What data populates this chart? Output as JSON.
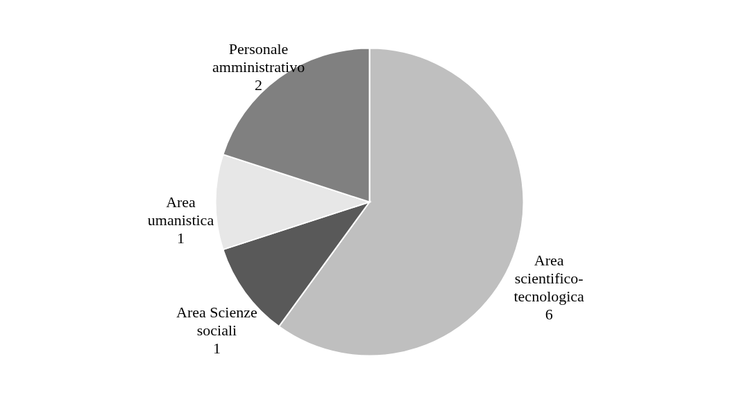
{
  "chart_data": {
    "type": "pie",
    "categories": [
      "Area scientifico-tecnologica",
      "Area Scienze sociali",
      "Area umanistica",
      "Personale amministrativo"
    ],
    "values": [
      6,
      1,
      1,
      2
    ],
    "colors": [
      "#bfbfbf",
      "#595959",
      "#e7e7e7",
      "#808080"
    ],
    "data_labels": true
  }
}
